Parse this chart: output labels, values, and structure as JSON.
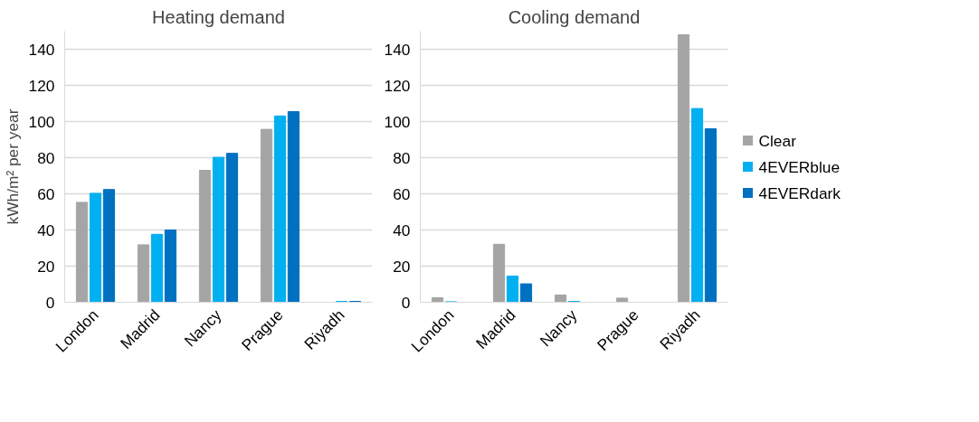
{
  "chart_data": [
    {
      "type": "bar",
      "title": "Heating demand",
      "ylabel": "kWh/m² per year",
      "categories": [
        "London",
        "Madrid",
        "Nancy",
        "Prague",
        "Riyadh"
      ],
      "ylim": [
        0,
        150
      ],
      "yticks": [
        0,
        20,
        40,
        60,
        80,
        100,
        120,
        140
      ],
      "grid": "y",
      "series": [
        {
          "color": "#a5a5a5",
          "values": [
            55.3,
            31.8,
            73,
            95.7,
            0
          ]
        },
        {
          "color": "#00b0f0",
          "values": [
            60.3,
            37.6,
            80.2,
            103.1,
            0.5
          ]
        },
        {
          "color": "#0070c0",
          "values": [
            62.4,
            40,
            82.4,
            105.5,
            0.5
          ]
        }
      ]
    },
    {
      "type": "bar",
      "title": "Cooling demand",
      "categories": [
        "London",
        "Madrid",
        "Nancy",
        "Prague",
        "Riyadh"
      ],
      "ylim": [
        0,
        150
      ],
      "yticks": [
        0,
        20,
        40,
        60,
        80,
        100,
        120,
        140
      ],
      "grid": "y",
      "legend": "right",
      "series": [
        {
          "name": "Clear",
          "color": "#a5a5a5",
          "values": [
            2.5,
            32.1,
            4,
            2.3,
            148
          ]
        },
        {
          "name": "4EVERblue",
          "color": "#00b0f0",
          "values": [
            0.3,
            14.5,
            0.5,
            0,
            107.2
          ]
        },
        {
          "name": "4EVERdark",
          "color": "#0070c0",
          "values": [
            0,
            10.2,
            0,
            0,
            96
          ]
        }
      ]
    }
  ]
}
